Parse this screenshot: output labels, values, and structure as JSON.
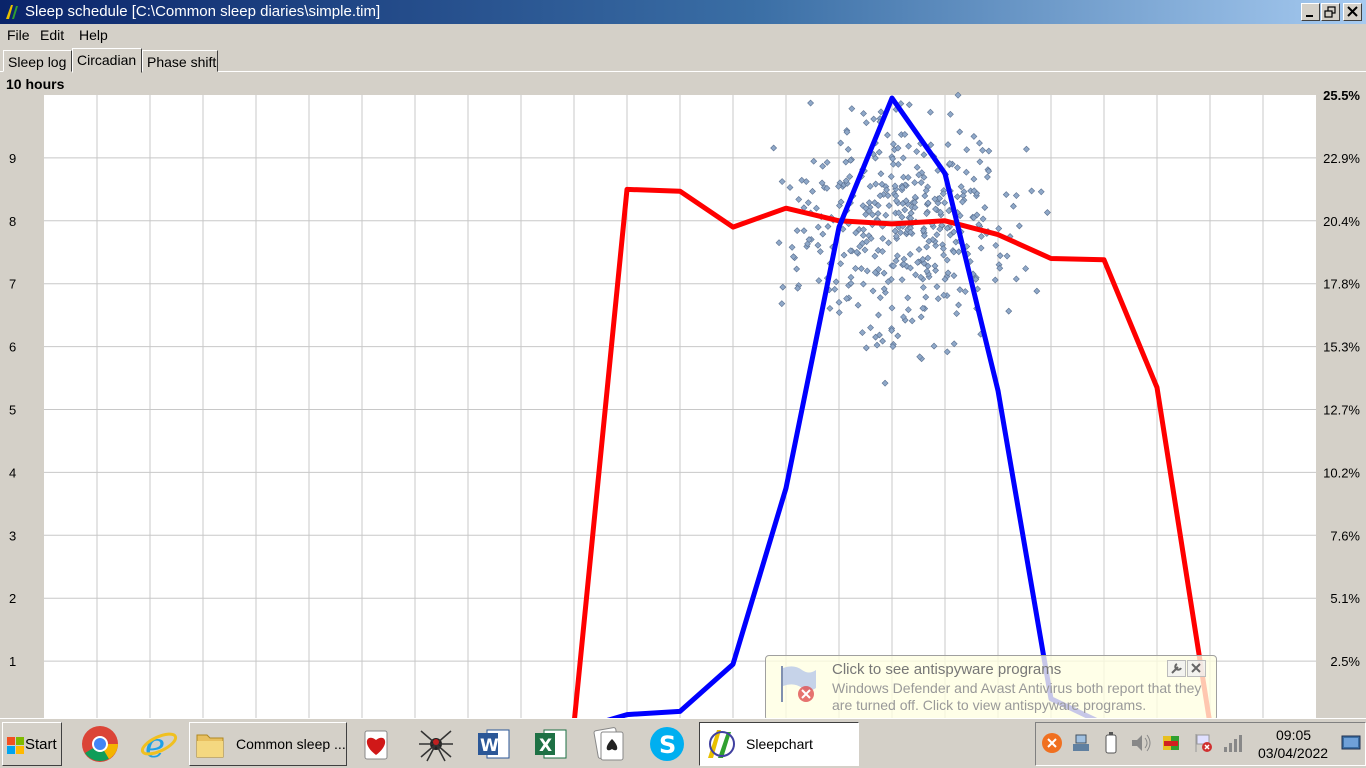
{
  "window": {
    "title": "Sleep schedule [C:\\Common sleep diaries\\simple.tim]"
  },
  "menu": [
    "File",
    "Edit",
    "Help"
  ],
  "tabs": [
    {
      "label": "Sleep log",
      "active": false
    },
    {
      "label": "Circadian",
      "active": true
    },
    {
      "label": "Phase shift",
      "active": false
    }
  ],
  "chart_data": {
    "type": "scatter",
    "title": "10 hours",
    "y_left_ticks": [
      "1",
      "2",
      "3",
      "4",
      "5",
      "6",
      "7",
      "8",
      "9"
    ],
    "y_right_ticks": [
      "2.5%",
      "5.1%",
      "7.6%",
      "10.2%",
      "12.7%",
      "15.3%",
      "17.8%",
      "20.4%",
      "22.9%",
      "25.5%"
    ],
    "y_left_range": [
      0,
      10
    ],
    "y_right_range": [
      "0%",
      "25.5%"
    ],
    "x_gridlines": 24,
    "grid": true,
    "series": [
      {
        "color": "#ff0000",
        "x": [
          10.0,
          11.0,
          12.0,
          13.0,
          14.0,
          15.0,
          16.0,
          17.0,
          18.0,
          19.0,
          20.0,
          21.0,
          22.0
        ],
        "y": [
          0.0,
          8.5,
          8.47,
          7.9,
          8.2,
          8.0,
          7.95,
          8.0,
          7.78,
          7.4,
          7.38,
          5.35,
          0.0
        ]
      },
      {
        "color": "#0000ff",
        "x": [
          10.4,
          11.0,
          12.0,
          13.0,
          14.0,
          15.0,
          16.0,
          17.0,
          18.0,
          19.0,
          20.0,
          21.0,
          22.0
        ],
        "y": [
          0.0,
          0.15,
          0.2,
          0.95,
          3.75,
          7.9,
          9.95,
          8.75,
          5.3,
          0.4,
          0.0,
          0.0,
          0.0
        ]
      }
    ],
    "scatter_color": "#8fa8c8",
    "scatter_center": {
      "x": 16.2,
      "y": 7.9
    },
    "scatter_spread": {
      "x": 0.95,
      "y": 0.85
    },
    "scatter_count": 420
  },
  "taskbar": {
    "start_label": "Start",
    "items": [
      {
        "icon": "chrome-icon"
      },
      {
        "icon": "internet-explorer-icon"
      },
      {
        "icon": "folder-icon",
        "label": "Common sleep ..."
      },
      {
        "icon": "hearts-icon"
      },
      {
        "icon": "spider-solitaire-icon"
      },
      {
        "icon": "word-icon"
      },
      {
        "icon": "excel-icon"
      },
      {
        "icon": "solitaire-icon"
      },
      {
        "icon": "skype-icon"
      },
      {
        "icon": "sleepchart-icon",
        "label": "Sleepchart"
      }
    ],
    "tray_icons": [
      "avast-icon",
      "network-icon",
      "battery-icon",
      "volume-icon",
      "flag-icon",
      "security-alert-icon",
      "signal-icon"
    ],
    "clock": {
      "time": "09:05",
      "date": "03/04/2022"
    }
  },
  "notification": {
    "title": "Click to see antispyware programs",
    "text": "Windows Defender and Avast Antivirus both report that they are turned off. Click to view antispyware programs."
  }
}
